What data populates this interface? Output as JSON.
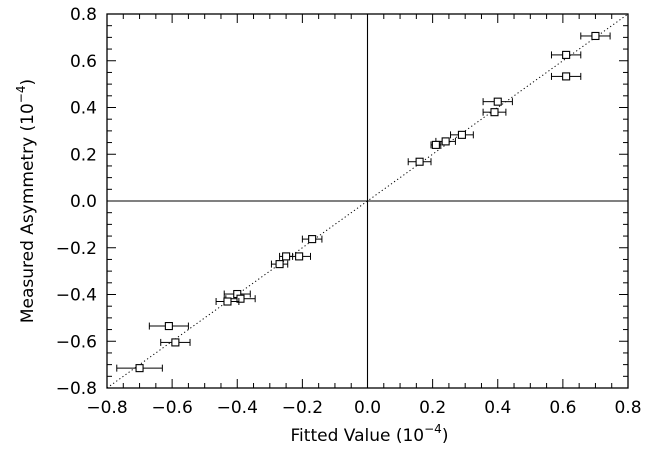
{
  "chart_data": {
    "type": "scatter",
    "xlabel": "Fitted Value",
    "xunit_prefix": "(10",
    "xunit_exp": "−4",
    "xunit_suffix": ")",
    "ylabel": "Measured Asymmetry",
    "yunit_prefix": "(10",
    "yunit_exp": "−4",
    "yunit_suffix": ")",
    "xlim": [
      -0.8,
      0.8
    ],
    "ylim": [
      -0.8,
      0.8
    ],
    "xticks": [
      -0.8,
      -0.6,
      -0.4,
      -0.2,
      0.0,
      0.2,
      0.4,
      0.6,
      0.8
    ],
    "yticks": [
      -0.8,
      -0.6,
      -0.4,
      -0.2,
      0.0,
      0.2,
      0.4,
      0.6,
      0.8
    ],
    "xtick_labels": [
      "−0.8",
      "−0.6",
      "−0.4",
      "−0.2",
      "0.0",
      "0.2",
      "0.4",
      "0.6",
      "0.8"
    ],
    "ytick_labels": [
      "−0.8",
      "−0.6",
      "−0.4",
      "−0.2",
      "0.0",
      "0.2",
      "0.4",
      "0.6",
      "0.8"
    ],
    "grid": false,
    "reference_lines": [
      "x = 0",
      "y = 0",
      "y = x (dotted)"
    ],
    "marker": "open-square",
    "points": [
      {
        "x": 0.7,
        "y": 0.706,
        "xerr": 0.045
      },
      {
        "x": 0.61,
        "y": 0.625,
        "xerr": 0.045
      },
      {
        "x": 0.61,
        "y": 0.533,
        "xerr": 0.045
      },
      {
        "x": 0.4,
        "y": 0.425,
        "xerr": 0.045
      },
      {
        "x": 0.39,
        "y": 0.38,
        "xerr": 0.035
      },
      {
        "x": 0.29,
        "y": 0.283,
        "xerr": 0.035
      },
      {
        "x": 0.24,
        "y": 0.255,
        "xerr": 0.03
      },
      {
        "x": 0.21,
        "y": 0.24,
        "xerr": 0.015
      },
      {
        "x": 0.16,
        "y": 0.168,
        "xerr": 0.035
      },
      {
        "x": -0.17,
        "y": -0.163,
        "xerr": 0.03
      },
      {
        "x": -0.21,
        "y": -0.237,
        "xerr": 0.035
      },
      {
        "x": -0.25,
        "y": -0.237,
        "xerr": 0.02
      },
      {
        "x": -0.27,
        "y": -0.27,
        "xerr": 0.025
      },
      {
        "x": -0.4,
        "y": -0.398,
        "xerr": 0.04
      },
      {
        "x": -0.39,
        "y": -0.418,
        "xerr": 0.045
      },
      {
        "x": -0.43,
        "y": -0.43,
        "xerr": 0.035
      },
      {
        "x": -0.61,
        "y": -0.535,
        "xerr": 0.06
      },
      {
        "x": -0.59,
        "y": -0.605,
        "xerr": 0.045
      },
      {
        "x": -0.7,
        "y": -0.715,
        "xerr": 0.07
      }
    ]
  }
}
